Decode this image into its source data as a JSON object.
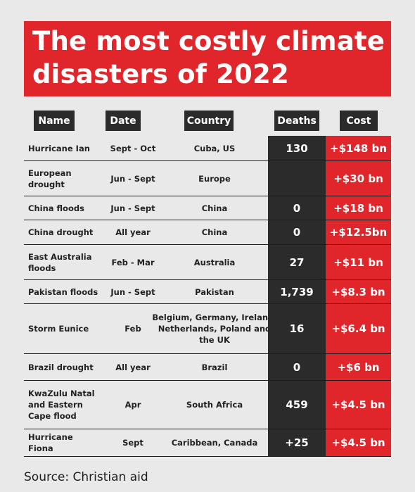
{
  "title": "The most costly climate disasters of 2022",
  "headers": {
    "name": "Name",
    "date": "Date",
    "country": "Country",
    "deaths": "Deaths",
    "cost": "Cost"
  },
  "rows": [
    {
      "name": "Hurricane Ian",
      "date": "Sept - Oct",
      "country": "Cuba, US",
      "deaths": "130",
      "cost": "+$148 bn"
    },
    {
      "name": "European drought",
      "date": "Jun - Sept",
      "country": "Europe",
      "deaths": "",
      "cost": "+$30 bn"
    },
    {
      "name": "China floods",
      "date": "Jun - Sept",
      "country": "China",
      "deaths": "0",
      "cost": "+$18 bn"
    },
    {
      "name": "China drought",
      "date": "All year",
      "country": "China",
      "deaths": "0",
      "cost": "+$12.5bn"
    },
    {
      "name": "East Australia floods",
      "date": "Feb - Mar",
      "country": "Australia",
      "deaths": "27",
      "cost": "+$11 bn"
    },
    {
      "name": "Pakistan floods",
      "date": "Jun - Sept",
      "country": "Pakistan",
      "deaths": "1,739",
      "cost": "+$8.3 bn"
    },
    {
      "name": "Storm Eunice",
      "date": "Feb",
      "country": "Belgium, Germany, Ireland, Netherlands, Poland and the UK",
      "deaths": "16",
      "cost": "+$6.4 bn"
    },
    {
      "name": "Brazil drought",
      "date": "All year",
      "country": "Brazil",
      "deaths": "0",
      "cost": "+$6 bn"
    },
    {
      "name": "KwaZulu Natal and Eastern Cape flood",
      "date": "Apr",
      "country": "South Africa",
      "deaths": "459",
      "cost": "+$4.5 bn"
    },
    {
      "name": "Hurricane Fiona",
      "date": "Sept",
      "country": "Caribbean, Canada",
      "deaths": "+25",
      "cost": "+$4.5 bn"
    }
  ],
  "source": "Source: Christian aid",
  "colors": {
    "accent_red": "#e0262b",
    "dark": "#2b2b2b",
    "background": "#e9e9e9"
  },
  "chart_data": {
    "type": "table",
    "title": "The most costly climate disasters of 2022",
    "columns": [
      "Name",
      "Date",
      "Country",
      "Deaths",
      "Cost"
    ],
    "rows": [
      [
        "Hurricane Ian",
        "Sept - Oct",
        "Cuba, US",
        "130",
        "+$148 bn"
      ],
      [
        "European drought",
        "Jun - Sept",
        "Europe",
        "",
        "+$30 bn"
      ],
      [
        "China floods",
        "Jun - Sept",
        "China",
        "0",
        "+$18 bn"
      ],
      [
        "China drought",
        "All year",
        "China",
        "0",
        "+$12.5bn"
      ],
      [
        "East Australia floods",
        "Feb - Mar",
        "Australia",
        "27",
        "+$11 bn"
      ],
      [
        "Pakistan floods",
        "Jun - Sept",
        "Pakistan",
        "1,739",
        "+$8.3 bn"
      ],
      [
        "Storm Eunice",
        "Feb",
        "Belgium, Germany, Ireland, Netherlands, Poland and the UK",
        "16",
        "+$6.4 bn"
      ],
      [
        "Brazil drought",
        "All year",
        "Brazil",
        "0",
        "+$6 bn"
      ],
      [
        "KwaZulu Natal and Eastern Cape flood",
        "Apr",
        "South Africa",
        "459",
        "+$4.5 bn"
      ],
      [
        "Hurricane Fiona",
        "Sept",
        "Caribbean, Canada",
        "+25",
        "+$4.5 bn"
      ]
    ],
    "source": "Source: Christian aid"
  }
}
